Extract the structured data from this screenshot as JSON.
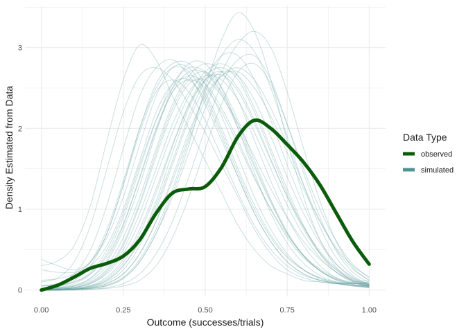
{
  "chart_data": {
    "type": "line",
    "title": "",
    "xlabel": "Outcome (successes/trials)",
    "ylabel": "Density Estimated from Data",
    "xlim": [
      -0.05,
      1.05
    ],
    "ylim": [
      -0.08,
      3.52
    ],
    "x_ticks": [
      {
        "value": 0,
        "label": "0.00"
      },
      {
        "value": 0.25,
        "label": "0.25"
      },
      {
        "value": 0.5,
        "label": "0.50"
      },
      {
        "value": 0.75,
        "label": "0.75"
      },
      {
        "value": 1,
        "label": "1.00"
      }
    ],
    "y_ticks": [
      {
        "value": 0,
        "label": "0"
      },
      {
        "value": 1,
        "label": "1"
      },
      {
        "value": 2,
        "label": "2"
      },
      {
        "value": 3,
        "label": "3"
      }
    ],
    "grid": true,
    "legend": {
      "title": "Data Type",
      "position": "right",
      "entries": [
        {
          "label": "observed",
          "color": "#0a5c0a"
        },
        {
          "label": "simulated",
          "color": "#4e9494"
        }
      ]
    },
    "colors": {
      "observed": "#0a5c0a",
      "simulated": "#4e9494",
      "grid": "#ebebeb"
    },
    "observed": {
      "x": [
        0,
        0.05,
        0.1,
        0.15,
        0.2,
        0.25,
        0.3,
        0.35,
        0.4,
        0.45,
        0.5,
        0.55,
        0.6,
        0.65,
        0.7,
        0.75,
        0.8,
        0.85,
        0.9,
        0.95,
        1.0
      ],
      "y": [
        0.0,
        0.06,
        0.16,
        0.27,
        0.33,
        0.42,
        0.62,
        0.95,
        1.2,
        1.25,
        1.28,
        1.52,
        1.9,
        2.1,
        2.0,
        1.8,
        1.58,
        1.3,
        0.95,
        0.6,
        0.32
      ]
    },
    "simulated": {
      "x": [
        0,
        0.05,
        0.1,
        0.15,
        0.2,
        0.25,
        0.3,
        0.35,
        0.4,
        0.45,
        0.5,
        0.55,
        0.6,
        0.65,
        0.7,
        0.75,
        0.8,
        0.85,
        0.9,
        0.95,
        1.0
      ],
      "series": [
        {
          "y": [
            0.3,
            0.36,
            0.55,
            1.05,
            1.85,
            2.6,
            3.03,
            2.85,
            2.4,
            2.0,
            1.6,
            1.2,
            0.8,
            0.5,
            0.3,
            0.2,
            0.12,
            0.1,
            0.08,
            0.1,
            0.12
          ]
        },
        {
          "y": [
            0.1,
            0.15,
            0.35,
            0.8,
            1.5,
            2.2,
            2.65,
            2.75,
            2.6,
            2.3,
            1.95,
            1.55,
            1.15,
            0.75,
            0.45,
            0.25,
            0.15,
            0.1,
            0.08,
            0.08,
            0.1
          ]
        },
        {
          "y": [
            0.05,
            0.08,
            0.2,
            0.5,
            1.05,
            1.75,
            2.4,
            2.75,
            2.85,
            2.65,
            2.3,
            1.85,
            1.4,
            0.95,
            0.6,
            0.35,
            0.2,
            0.12,
            0.08,
            0.06,
            0.05
          ]
        },
        {
          "y": [
            0.02,
            0.05,
            0.12,
            0.3,
            0.7,
            1.3,
            2.0,
            2.55,
            2.8,
            2.8,
            2.55,
            2.15,
            1.65,
            1.15,
            0.75,
            0.45,
            0.25,
            0.14,
            0.08,
            0.05,
            0.04
          ]
        },
        {
          "y": [
            0.01,
            0.03,
            0.08,
            0.2,
            0.45,
            0.9,
            1.5,
            2.1,
            2.55,
            2.75,
            2.7,
            2.45,
            2.05,
            1.55,
            1.1,
            0.7,
            0.42,
            0.24,
            0.12,
            0.06,
            0.03
          ]
        },
        {
          "y": [
            0.01,
            0.02,
            0.05,
            0.12,
            0.3,
            0.65,
            1.15,
            1.75,
            2.3,
            2.65,
            2.8,
            2.7,
            2.35,
            1.85,
            1.35,
            0.9,
            0.55,
            0.3,
            0.15,
            0.07,
            0.03
          ]
        },
        {
          "y": [
            0.0,
            0.01,
            0.03,
            0.08,
            0.2,
            0.45,
            0.85,
            1.4,
            1.95,
            2.4,
            2.7,
            2.8,
            2.65,
            2.25,
            1.75,
            1.25,
            0.8,
            0.45,
            0.22,
            0.1,
            0.04
          ]
        },
        {
          "y": [
            0.0,
            0.01,
            0.02,
            0.05,
            0.12,
            0.3,
            0.6,
            1.05,
            1.6,
            2.15,
            2.6,
            2.9,
            2.9,
            2.6,
            2.1,
            1.55,
            1.05,
            0.62,
            0.32,
            0.15,
            0.06
          ]
        },
        {
          "y": [
            0.0,
            0.0,
            0.01,
            0.03,
            0.08,
            0.2,
            0.45,
            0.85,
            1.35,
            1.9,
            2.45,
            2.9,
            3.1,
            2.95,
            2.5,
            1.9,
            1.3,
            0.78,
            0.4,
            0.18,
            0.07
          ]
        },
        {
          "y": [
            0.0,
            0.0,
            0.01,
            0.02,
            0.05,
            0.14,
            0.35,
            0.7,
            1.2,
            1.8,
            2.5,
            3.1,
            3.43,
            3.2,
            2.6,
            1.85,
            1.15,
            0.62,
            0.28,
            0.11,
            0.04
          ]
        },
        {
          "y": [
            0.0,
            0.0,
            0.01,
            0.02,
            0.06,
            0.15,
            0.35,
            0.7,
            1.15,
            1.7,
            2.25,
            2.7,
            3.05,
            3.2,
            3.0,
            2.45,
            1.75,
            1.1,
            0.6,
            0.28,
            0.12
          ]
        },
        {
          "y": [
            0.0,
            0.0,
            0.0,
            0.01,
            0.03,
            0.08,
            0.2,
            0.45,
            0.85,
            1.4,
            2.0,
            2.55,
            2.85,
            2.9,
            2.6,
            2.05,
            1.45,
            0.9,
            0.48,
            0.22,
            0.09
          ]
        },
        {
          "y": [
            0.0,
            0.0,
            0.0,
            0.01,
            0.02,
            0.05,
            0.12,
            0.3,
            0.65,
            1.15,
            1.75,
            2.3,
            2.7,
            2.8,
            2.55,
            2.05,
            1.5,
            1.0,
            0.6,
            0.32,
            0.15
          ]
        },
        {
          "y": [
            0.25,
            0.22,
            0.22,
            0.3,
            0.55,
            1.0,
            1.6,
            2.2,
            2.55,
            2.6,
            2.35,
            1.9,
            1.4,
            0.95,
            0.6,
            0.35,
            0.2,
            0.12,
            0.08,
            0.06,
            0.05
          ]
        },
        {
          "y": [
            0.38,
            0.3,
            0.25,
            0.35,
            0.7,
            1.3,
            1.95,
            2.45,
            2.6,
            2.45,
            2.1,
            1.65,
            1.2,
            0.8,
            0.5,
            0.3,
            0.18,
            0.12,
            0.09,
            0.08,
            0.08
          ]
        },
        {
          "y": [
            0.05,
            0.08,
            0.15,
            0.35,
            0.75,
            1.35,
            2.0,
            2.5,
            2.75,
            2.7,
            2.4,
            1.95,
            1.45,
            1.0,
            0.65,
            0.4,
            0.25,
            0.15,
            0.1,
            0.08,
            0.1
          ]
        },
        {
          "y": [
            0.02,
            0.04,
            0.1,
            0.22,
            0.5,
            0.95,
            1.55,
            2.1,
            2.5,
            2.65,
            2.55,
            2.25,
            1.85,
            1.4,
            1.0,
            0.65,
            0.4,
            0.24,
            0.14,
            0.09,
            0.07
          ]
        },
        {
          "y": [
            0.01,
            0.02,
            0.05,
            0.14,
            0.35,
            0.75,
            1.3,
            1.95,
            2.5,
            2.8,
            2.8,
            2.5,
            2.0,
            1.45,
            0.95,
            0.58,
            0.33,
            0.18,
            0.1,
            0.05,
            0.03
          ]
        },
        {
          "y": [
            0.0,
            0.01,
            0.03,
            0.08,
            0.22,
            0.5,
            0.95,
            1.5,
            2.05,
            2.45,
            2.65,
            2.6,
            2.35,
            1.95,
            1.5,
            1.05,
            0.68,
            0.4,
            0.22,
            0.11,
            0.05
          ]
        },
        {
          "y": [
            0.0,
            0.01,
            0.02,
            0.06,
            0.16,
            0.38,
            0.75,
            1.25,
            1.8,
            2.3,
            2.65,
            2.75,
            2.6,
            2.2,
            1.7,
            1.2,
            0.78,
            0.46,
            0.25,
            0.13,
            0.06
          ]
        },
        {
          "y": [
            0.0,
            0.0,
            0.01,
            0.04,
            0.1,
            0.25,
            0.55,
            1.0,
            1.55,
            2.1,
            2.5,
            2.7,
            2.65,
            2.35,
            1.9,
            1.4,
            0.95,
            0.58,
            0.32,
            0.16,
            0.07
          ]
        },
        {
          "y": [
            0.02,
            0.03,
            0.06,
            0.15,
            0.38,
            0.8,
            1.4,
            2.0,
            2.45,
            2.6,
            2.5,
            2.2,
            1.8,
            1.38,
            1.0,
            0.68,
            0.43,
            0.26,
            0.15,
            0.09,
            0.06
          ]
        },
        {
          "y": [
            0.0,
            0.01,
            0.03,
            0.09,
            0.24,
            0.55,
            1.05,
            1.65,
            2.2,
            2.55,
            2.6,
            2.4,
            2.05,
            1.65,
            1.25,
            0.9,
            0.6,
            0.38,
            0.22,
            0.12,
            0.07
          ]
        },
        {
          "y": [
            0.0,
            0.0,
            0.01,
            0.03,
            0.08,
            0.2,
            0.45,
            0.85,
            1.4,
            1.95,
            2.4,
            2.65,
            2.7,
            2.5,
            2.15,
            1.7,
            1.25,
            0.85,
            0.52,
            0.3,
            0.16
          ]
        },
        {
          "y": [
            0.0,
            0.0,
            0.01,
            0.02,
            0.06,
            0.16,
            0.38,
            0.75,
            1.25,
            1.85,
            2.35,
            2.65,
            2.75,
            2.6,
            2.25,
            1.8,
            1.3,
            0.85,
            0.5,
            0.26,
            0.12
          ]
        },
        {
          "y": [
            0.05,
            0.06,
            0.1,
            0.2,
            0.42,
            0.82,
            1.38,
            1.98,
            2.45,
            2.7,
            2.68,
            2.42,
            2.0,
            1.52,
            1.08,
            0.7,
            0.42,
            0.24,
            0.13,
            0.08,
            0.06
          ]
        },
        {
          "y": [
            0.01,
            0.02,
            0.04,
            0.1,
            0.26,
            0.58,
            1.08,
            1.7,
            2.25,
            2.6,
            2.7,
            2.5,
            2.1,
            1.6,
            1.12,
            0.72,
            0.43,
            0.24,
            0.13,
            0.07,
            0.04
          ]
        },
        {
          "y": [
            0.0,
            0.01,
            0.02,
            0.05,
            0.14,
            0.34,
            0.7,
            1.2,
            1.78,
            2.28,
            2.6,
            2.66,
            2.46,
            2.06,
            1.6,
            1.16,
            0.78,
            0.48,
            0.27,
            0.14,
            0.07
          ]
        },
        {
          "y": [
            0.12,
            0.14,
            0.2,
            0.35,
            0.65,
            1.15,
            1.8,
            2.4,
            2.75,
            2.75,
            2.45,
            2.0,
            1.5,
            1.05,
            0.68,
            0.42,
            0.25,
            0.15,
            0.09,
            0.06,
            0.05
          ]
        },
        {
          "y": [
            0.0,
            0.0,
            0.01,
            0.04,
            0.12,
            0.3,
            0.62,
            1.1,
            1.7,
            2.25,
            2.6,
            2.7,
            2.5,
            2.1,
            1.62,
            1.15,
            0.75,
            0.45,
            0.25,
            0.12,
            0.05
          ]
        }
      ]
    }
  }
}
